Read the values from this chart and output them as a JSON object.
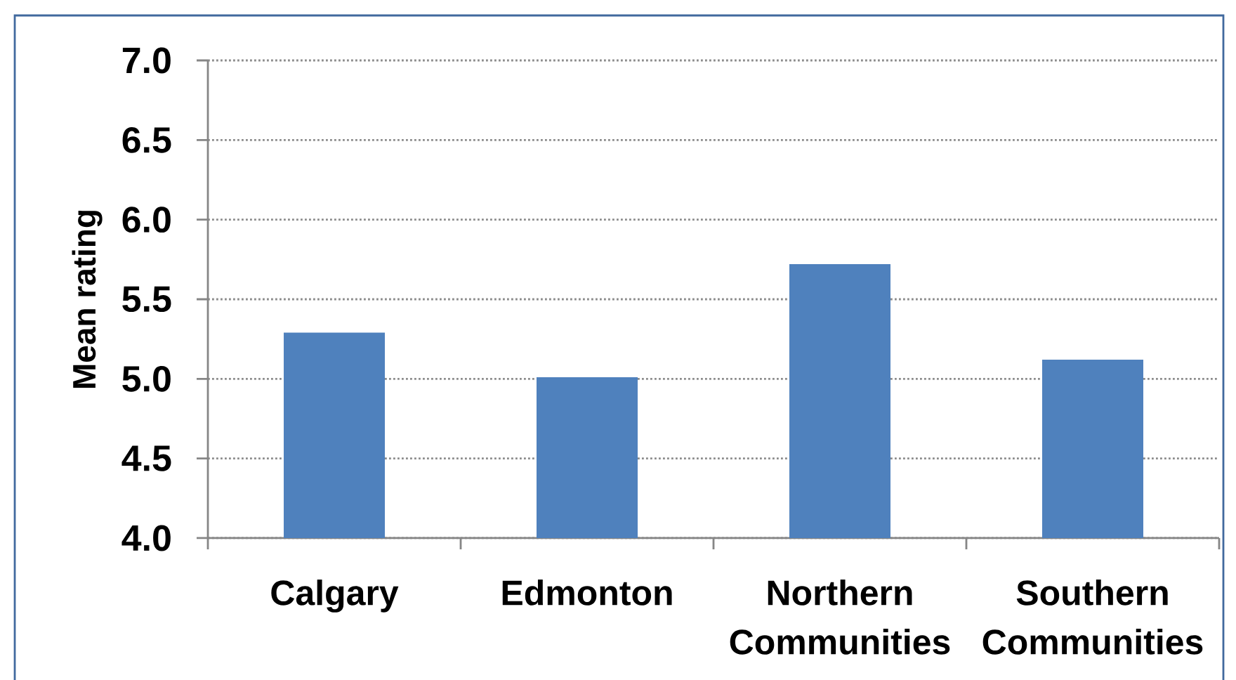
{
  "chart_data": {
    "type": "bar",
    "ylabel": "Mean rating",
    "categories": [
      "Calgary",
      "Edmonton",
      "Northern Communities",
      "Southern Communities"
    ],
    "values": [
      5.29,
      5.01,
      5.72,
      5.12
    ],
    "color": "#4f81bd",
    "ylim": [
      4,
      7
    ],
    "yticks": [
      {
        "value": 4,
        "label": "4.0"
      },
      {
        "value": 4.5,
        "label": "4.5"
      },
      {
        "value": 5,
        "label": "5.0"
      },
      {
        "value": 5.5,
        "label": "5.5"
      },
      {
        "value": 6,
        "label": "6.0"
      },
      {
        "value": 6.5,
        "label": "6.5"
      },
      {
        "value": 7,
        "label": "7.0"
      }
    ],
    "grid": "y"
  }
}
